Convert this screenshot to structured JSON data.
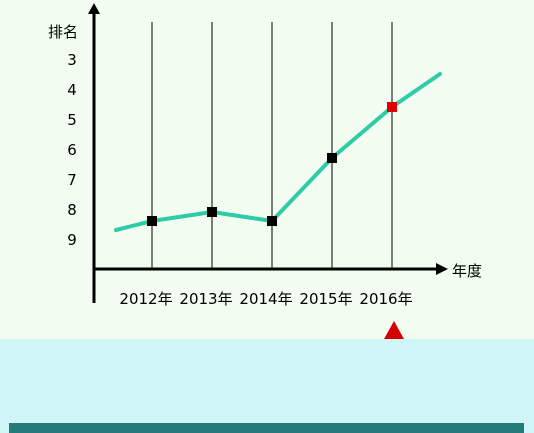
{
  "chart_data": {
    "type": "line",
    "xlabel": "年度",
    "ylabel": "排名",
    "y_inverted": true,
    "ylim": [
      3,
      9
    ],
    "y_ticks": [
      "3",
      "4",
      "5",
      "6",
      "7",
      "8",
      "9"
    ],
    "categories": [
      "2012年",
      "2013年",
      "2014年",
      "2015年",
      "2016年"
    ],
    "x": [
      2012,
      2013,
      2014,
      2015,
      2016
    ],
    "values": [
      8.4,
      8.1,
      8.4,
      6.3,
      4.6
    ],
    "line_range": [
      2011.4,
      2016.8
    ],
    "line_endpoints": [
      8.7,
      3.5
    ],
    "grid": "vertical",
    "colors": {
      "line": "#2ecca6",
      "marker": "#000000",
      "highlight_marker": "#dd0000",
      "axis": "#000000"
    },
    "highlight": {
      "category": "2016年",
      "indicator": "triangle-up"
    }
  },
  "colors": {
    "background": "#f3fcf1",
    "bottom_panel": "#cff5f7",
    "bottom_bar": "#247c78",
    "triangle": "#d40000"
  }
}
